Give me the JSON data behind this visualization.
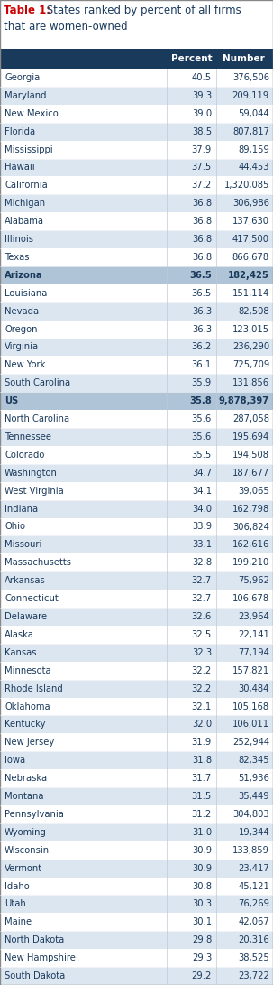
{
  "title_bold": "Table 1:",
  "title_rest": " States ranked by percent of all firms\nthat are women-owned",
  "col_headers": [
    "",
    "Percent",
    "Number"
  ],
  "rows": [
    {
      "state": "Georgia",
      "percent": "40.5",
      "number": "376,506",
      "bg": "#ffffff",
      "bold": false
    },
    {
      "state": "Maryland",
      "percent": "39.3",
      "number": "209,119",
      "bg": "#dce6f1",
      "bold": false
    },
    {
      "state": "New Mexico",
      "percent": "39.0",
      "number": "59,044",
      "bg": "#ffffff",
      "bold": false
    },
    {
      "state": "Florida",
      "percent": "38.5",
      "number": "807,817",
      "bg": "#dce6f1",
      "bold": false
    },
    {
      "state": "Mississippi",
      "percent": "37.9",
      "number": "89,159",
      "bg": "#ffffff",
      "bold": false
    },
    {
      "state": "Hawaii",
      "percent": "37.5",
      "number": "44,453",
      "bg": "#dce6f1",
      "bold": false
    },
    {
      "state": "California",
      "percent": "37.2",
      "number": "1,320,085",
      "bg": "#ffffff",
      "bold": false
    },
    {
      "state": "Michigan",
      "percent": "36.8",
      "number": "306,986",
      "bg": "#dce6f1",
      "bold": false
    },
    {
      "state": "Alabama",
      "percent": "36.8",
      "number": "137,630",
      "bg": "#ffffff",
      "bold": false
    },
    {
      "state": "Illinois",
      "percent": "36.8",
      "number": "417,500",
      "bg": "#dce6f1",
      "bold": false
    },
    {
      "state": "Texas",
      "percent": "36.8",
      "number": "866,678",
      "bg": "#ffffff",
      "bold": false
    },
    {
      "state": "Arizona",
      "percent": "36.5",
      "number": "182,425",
      "bg": "#b0c4d8",
      "bold": true
    },
    {
      "state": "Louisiana",
      "percent": "36.5",
      "number": "151,114",
      "bg": "#ffffff",
      "bold": false
    },
    {
      "state": "Nevada",
      "percent": "36.3",
      "number": "82,508",
      "bg": "#dce6f1",
      "bold": false
    },
    {
      "state": "Oregon",
      "percent": "36.3",
      "number": "123,015",
      "bg": "#ffffff",
      "bold": false
    },
    {
      "state": "Virginia",
      "percent": "36.2",
      "number": "236,290",
      "bg": "#dce6f1",
      "bold": false
    },
    {
      "state": "New York",
      "percent": "36.1",
      "number": "725,709",
      "bg": "#ffffff",
      "bold": false
    },
    {
      "state": "South Carolina",
      "percent": "35.9",
      "number": "131,856",
      "bg": "#dce6f1",
      "bold": false
    },
    {
      "state": "US",
      "percent": "35.8",
      "number": "9,878,397",
      "bg": "#b0c4d8",
      "bold": true
    },
    {
      "state": "North Carolina",
      "percent": "35.6",
      "number": "287,058",
      "bg": "#ffffff",
      "bold": false
    },
    {
      "state": "Tennessee",
      "percent": "35.6",
      "number": "195,694",
      "bg": "#dce6f1",
      "bold": false
    },
    {
      "state": "Colorado",
      "percent": "35.5",
      "number": "194,508",
      "bg": "#ffffff",
      "bold": false
    },
    {
      "state": "Washington",
      "percent": "34.7",
      "number": "187,677",
      "bg": "#dce6f1",
      "bold": false
    },
    {
      "state": "West Virginia",
      "percent": "34.1",
      "number": "39,065",
      "bg": "#ffffff",
      "bold": false
    },
    {
      "state": "Indiana",
      "percent": "34.0",
      "number": "162,798",
      "bg": "#dce6f1",
      "bold": false
    },
    {
      "state": "Ohio",
      "percent": "33.9",
      "number": "306,824",
      "bg": "#ffffff",
      "bold": false
    },
    {
      "state": "Missouri",
      "percent": "33.1",
      "number": "162,616",
      "bg": "#dce6f1",
      "bold": false
    },
    {
      "state": "Massachusetts",
      "percent": "32.8",
      "number": "199,210",
      "bg": "#ffffff",
      "bold": false
    },
    {
      "state": "Arkansas",
      "percent": "32.7",
      "number": "75,962",
      "bg": "#dce6f1",
      "bold": false
    },
    {
      "state": "Connecticut",
      "percent": "32.7",
      "number": "106,678",
      "bg": "#ffffff",
      "bold": false
    },
    {
      "state": "Delaware",
      "percent": "32.6",
      "number": "23,964",
      "bg": "#dce6f1",
      "bold": false
    },
    {
      "state": "Alaska",
      "percent": "32.5",
      "number": "22,141",
      "bg": "#ffffff",
      "bold": false
    },
    {
      "state": "Kansas",
      "percent": "32.3",
      "number": "77,194",
      "bg": "#dce6f1",
      "bold": false
    },
    {
      "state": "Minnesota",
      "percent": "32.2",
      "number": "157,821",
      "bg": "#ffffff",
      "bold": false
    },
    {
      "state": "Rhode Island",
      "percent": "32.2",
      "number": "30,484",
      "bg": "#dce6f1",
      "bold": false
    },
    {
      "state": "Oklahoma",
      "percent": "32.1",
      "number": "105,168",
      "bg": "#ffffff",
      "bold": false
    },
    {
      "state": "Kentucky",
      "percent": "32.0",
      "number": "106,011",
      "bg": "#dce6f1",
      "bold": false
    },
    {
      "state": "New Jersey",
      "percent": "31.9",
      "number": "252,944",
      "bg": "#ffffff",
      "bold": false
    },
    {
      "state": "Iowa",
      "percent": "31.8",
      "number": "82,345",
      "bg": "#dce6f1",
      "bold": false
    },
    {
      "state": "Nebraska",
      "percent": "31.7",
      "number": "51,936",
      "bg": "#ffffff",
      "bold": false
    },
    {
      "state": "Montana",
      "percent": "31.5",
      "number": "35,449",
      "bg": "#dce6f1",
      "bold": false
    },
    {
      "state": "Pennsylvania",
      "percent": "31.2",
      "number": "304,803",
      "bg": "#ffffff",
      "bold": false
    },
    {
      "state": "Wyoming",
      "percent": "31.0",
      "number": "19,344",
      "bg": "#dce6f1",
      "bold": false
    },
    {
      "state": "Wisconsin",
      "percent": "30.9",
      "number": "133,859",
      "bg": "#ffffff",
      "bold": false
    },
    {
      "state": "Vermont",
      "percent": "30.9",
      "number": "23,417",
      "bg": "#dce6f1",
      "bold": false
    },
    {
      "state": "Idaho",
      "percent": "30.8",
      "number": "45,121",
      "bg": "#ffffff",
      "bold": false
    },
    {
      "state": "Utah",
      "percent": "30.3",
      "number": "76,269",
      "bg": "#dce6f1",
      "bold": false
    },
    {
      "state": "Maine",
      "percent": "30.1",
      "number": "42,067",
      "bg": "#ffffff",
      "bold": false
    },
    {
      "state": "North Dakota",
      "percent": "29.8",
      "number": "20,316",
      "bg": "#dce6f1",
      "bold": false
    },
    {
      "state": "New Hampshire",
      "percent": "29.3",
      "number": "38,525",
      "bg": "#ffffff",
      "bold": false
    },
    {
      "state": "South Dakota",
      "percent": "29.2",
      "number": "23,722",
      "bg": "#dce6f1",
      "bold": false
    }
  ],
  "header_bg": "#1a3a5c",
  "header_fg": "#ffffff",
  "fg": "#1a3a5c",
  "title_color_bold": "#cc0000",
  "title_color_normal": "#1a3a5c",
  "divider_color": "#c0c8d8",
  "border_color": "#888888",
  "fig_width": 3.03,
  "fig_height": 10.91,
  "dpi": 100
}
